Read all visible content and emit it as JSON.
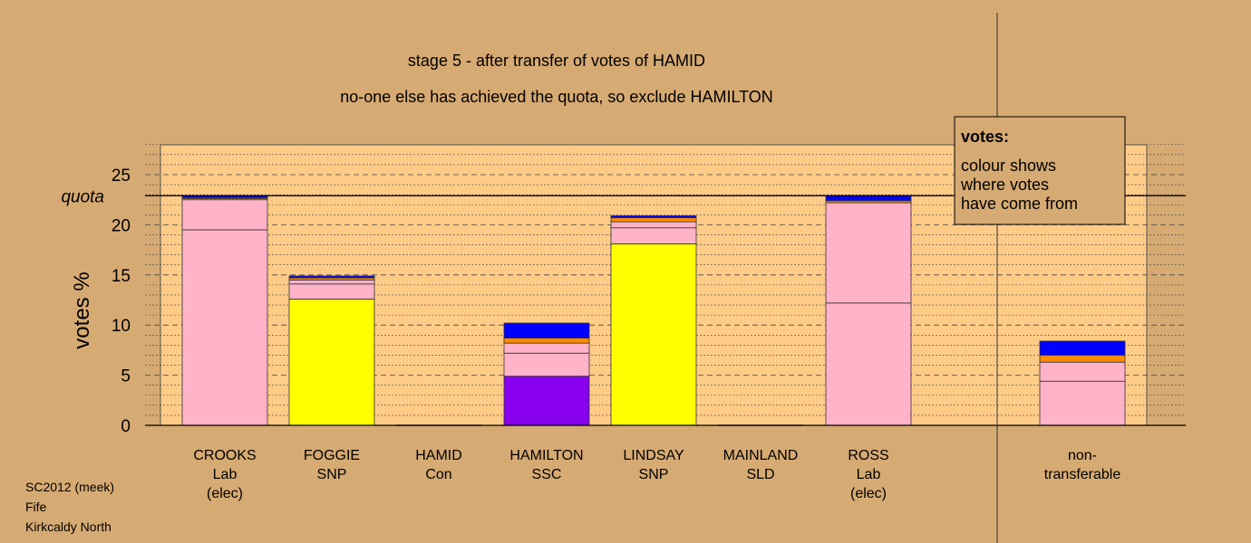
{
  "chart_data": {
    "type": "stacked-bar",
    "title": "stage 5 - after transfer of votes of HAMID",
    "subtitle": "no-one else has achieved the quota, so exclude HAMILTON",
    "ylabel": "votes %",
    "ylim": [
      0,
      28
    ],
    "yticks": [
      0,
      5,
      10,
      15,
      20,
      25
    ],
    "quota": 22.9,
    "quota_label": "quota",
    "legend": {
      "title": "votes:",
      "lines": [
        "colour shows",
        "where votes",
        "have come from"
      ],
      "placement": "top-right"
    },
    "colors": {
      "Lab": "#ffb3c9",
      "SNP": "#ffff00",
      "SSC": "#8800ee",
      "Con": "#0000ff",
      "SLD": "#ff8c00",
      "panel": "#ffcc88",
      "background": "#d6aa73"
    },
    "candidates": [
      {
        "lines": [
          "CROOKS",
          "Lab",
          "(elec)"
        ],
        "segments": [
          {
            "from": "Lab",
            "value": 19.5
          },
          {
            "from": "Lab",
            "value": 3.0
          },
          {
            "from": "SNP",
            "value": 0.1
          },
          {
            "from": "SLD",
            "value": 0.1
          },
          {
            "from": "Con",
            "value": 0.2
          }
        ]
      },
      {
        "lines": [
          "FOGGIE",
          "SNP"
        ],
        "segments": [
          {
            "from": "SNP",
            "value": 12.6
          },
          {
            "from": "Lab",
            "value": 1.5
          },
          {
            "from": "Lab",
            "value": 0.4
          },
          {
            "from": "SLD",
            "value": 0.2
          },
          {
            "from": "Con",
            "value": 0.2
          }
        ]
      },
      {
        "lines": [
          "HAMID",
          "Con"
        ],
        "segments": []
      },
      {
        "lines": [
          "HAMILTON",
          "SSC"
        ],
        "segments": [
          {
            "from": "SSC",
            "value": 4.9
          },
          {
            "from": "Lab",
            "value": 2.3
          },
          {
            "from": "Lab",
            "value": 1.0
          },
          {
            "from": "SLD",
            "value": 0.5
          },
          {
            "from": "Con",
            "value": 1.5
          }
        ]
      },
      {
        "lines": [
          "LINDSAY",
          "SNP"
        ],
        "segments": [
          {
            "from": "SNP",
            "value": 18.1
          },
          {
            "from": "Lab",
            "value": 1.6
          },
          {
            "from": "Lab",
            "value": 0.6
          },
          {
            "from": "SLD",
            "value": 0.4
          },
          {
            "from": "Con",
            "value": 0.2
          }
        ]
      },
      {
        "lines": [
          "MAINLAND",
          "SLD"
        ],
        "segments": []
      },
      {
        "lines": [
          "ROSS",
          "Lab",
          "(elec)"
        ],
        "segments": [
          {
            "from": "Lab",
            "value": 12.2
          },
          {
            "from": "Lab",
            "value": 10.0
          },
          {
            "from": "SLD",
            "value": 0.2
          },
          {
            "from": "Con",
            "value": 0.5
          }
        ]
      },
      {
        "lines": [
          "non-",
          "transferable"
        ],
        "segments": [
          {
            "from": "Lab",
            "value": 4.4
          },
          {
            "from": "Lab",
            "value": 1.9
          },
          {
            "from": "SLD",
            "value": 0.7
          },
          {
            "from": "Con",
            "value": 1.4
          }
        ]
      }
    ],
    "footer": [
      "SC2012 (meek)",
      "Fife",
      "Kirkcaldy North"
    ]
  }
}
